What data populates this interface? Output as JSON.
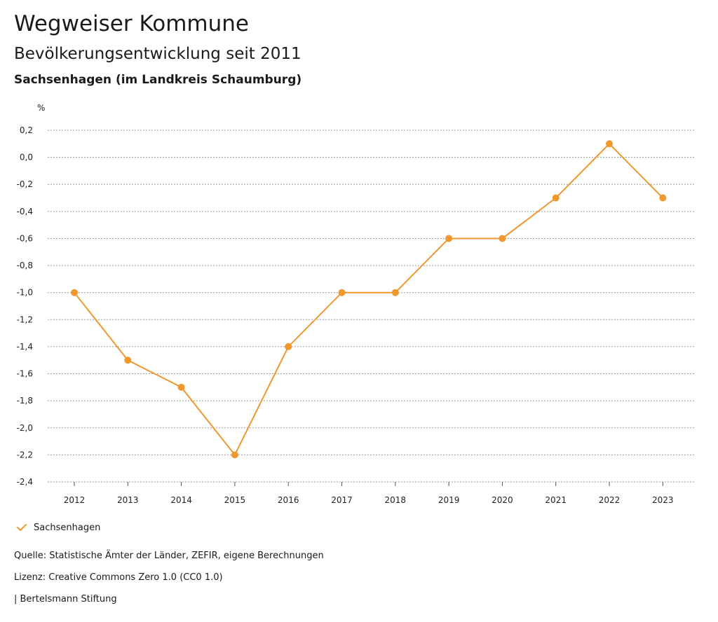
{
  "header": {
    "title": "Wegweiser Kommune",
    "subtitle": "Bevölkerungsentwicklung seit 2011",
    "region": "Sachsenhagen (im Landkreis Schaumburg)"
  },
  "chart_data": {
    "type": "line",
    "title": "Bevölkerungsentwicklung seit 2011",
    "ylabel": "%",
    "xlabel": "",
    "ylim": [
      -2.4,
      0.2
    ],
    "yticks": [
      0.2,
      0.0,
      -0.2,
      -0.4,
      -0.6,
      -0.8,
      -1.0,
      -1.2,
      -1.4,
      -1.6,
      -1.8,
      -2.0,
      -2.2,
      -2.4
    ],
    "ytick_labels": [
      "0,2",
      "0,0",
      "-0,2",
      "-0,4",
      "-0,6",
      "-0,8",
      "-1,0",
      "-1,2",
      "-1,4",
      "-1,6",
      "-1,8",
      "-2,0",
      "-2,2",
      "-2,4"
    ],
    "categories": [
      "2012",
      "2013",
      "2014",
      "2015",
      "2016",
      "2017",
      "2018",
      "2019",
      "2020",
      "2021",
      "2022",
      "2023"
    ],
    "series": [
      {
        "name": "Sachsenhagen",
        "color": "#f0972e",
        "values": [
          -1.0,
          -1.5,
          -1.7,
          -2.2,
          -1.4,
          -1.0,
          -1.0,
          -0.6,
          -0.6,
          -0.3,
          0.1,
          -0.3
        ]
      }
    ],
    "grid": true,
    "legend": "bottom-left"
  },
  "legend": {
    "label": "Sachsenhagen"
  },
  "footer": {
    "source": "Quelle: Statistische Ämter der Länder, ZEFIR, eigene Berechnungen",
    "license": "Lizenz: Creative Commons Zero 1.0 (CC0 1.0)",
    "publisher": "| Bertelsmann Stiftung"
  }
}
